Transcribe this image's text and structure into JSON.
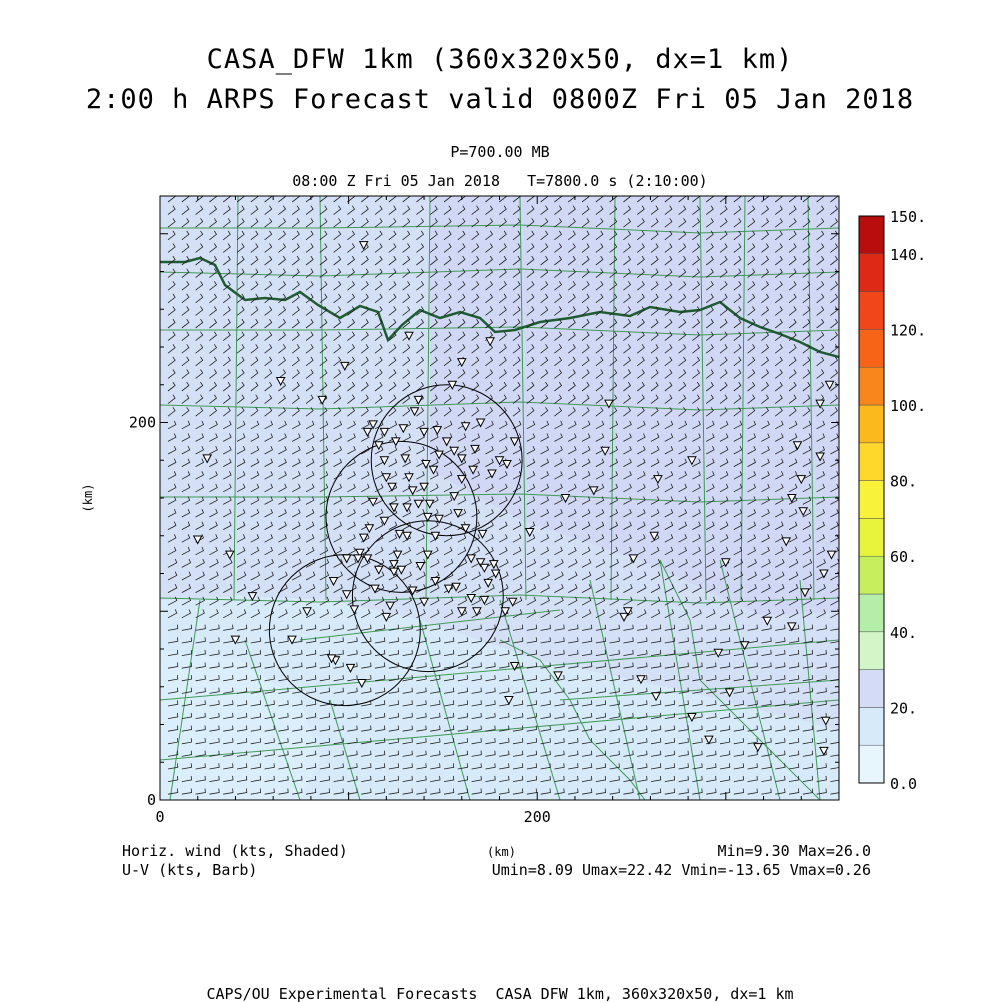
{
  "header": {
    "title_line1": "CASA_DFW 1km (360x320x50, dx=1 km)",
    "title_line2": "2:00 h ARPS Forecast valid 0800Z Fri 05 Jan 2018",
    "level": "P=700.00 MB",
    "time_line": "08:00 Z Fri 05 Jan 2018   T=7800.0 s (2:10:00)"
  },
  "footer": {
    "field_label": "Horiz. wind (kts, Shaded)",
    "vector_label": "U-V (kts, Barb)",
    "minmax": "Min=9.30 Max=26.0",
    "uv_stats": "Umin=8.09 Umax=22.42 Vmin=-13.65 Vmax=0.26",
    "credit": "CAPS/OU Experimental Forecasts  CASA DFW 1km, 360x320x50, dx=1 km"
  },
  "chart_data": {
    "type": "heatmap",
    "variable": "Horiz. wind (kts, Shaded)",
    "xlabel": "(km)",
    "ylabel": "(km)",
    "xlim": [
      0,
      360
    ],
    "ylim": [
      0,
      320
    ],
    "x_ticks": [
      {
        "value": 0,
        "label": "0"
      },
      {
        "value": 200,
        "label": "200"
      }
    ],
    "y_ticks": [
      {
        "value": 0,
        "label": "0"
      },
      {
        "value": 200,
        "label": "200"
      }
    ],
    "colorbar": {
      "range": [
        0,
        150
      ],
      "labels": [
        {
          "value": 0,
          "label": "0.0"
        },
        {
          "value": 20,
          "label": "20."
        },
        {
          "value": 40,
          "label": "40."
        },
        {
          "value": 60,
          "label": "60."
        },
        {
          "value": 80,
          "label": "80."
        },
        {
          "value": 100,
          "label": "100."
        },
        {
          "value": 120,
          "label": "120."
        },
        {
          "value": 140,
          "label": "140."
        },
        {
          "value": 150,
          "label": "150."
        }
      ],
      "bins": [
        {
          "from": 0,
          "to": 10,
          "color": "#e6f6fc"
        },
        {
          "from": 10,
          "to": 20,
          "color": "#d6eafa"
        },
        {
          "from": 20,
          "to": 30,
          "color": "#d3dbf5"
        },
        {
          "from": 30,
          "to": 40,
          "color": "#d2f6c8"
        },
        {
          "from": 40,
          "to": 50,
          "color": "#b5eea8"
        },
        {
          "from": 50,
          "to": 60,
          "color": "#c7ee5c"
        },
        {
          "from": 60,
          "to": 70,
          "color": "#e8f43c"
        },
        {
          "from": 70,
          "to": 80,
          "color": "#f8f23a"
        },
        {
          "from": 80,
          "to": 90,
          "color": "#fed82a"
        },
        {
          "from": 90,
          "to": 100,
          "color": "#fcb91e"
        },
        {
          "from": 100,
          "to": 110,
          "color": "#f8861c"
        },
        {
          "from": 110,
          "to": 120,
          "color": "#f76418"
        },
        {
          "from": 120,
          "to": 130,
          "color": "#f1461a"
        },
        {
          "from": 130,
          "to": 140,
          "color": "#de2a14"
        },
        {
          "from": 140,
          "to": 150,
          "color": "#b70d0d"
        }
      ]
    },
    "field_regions": [
      {
        "name": "nw-high",
        "value": 22,
        "color": "#d4e0f6"
      },
      {
        "name": "ne-high",
        "value": 24,
        "color": "#d0d8f5"
      },
      {
        "name": "south-low",
        "value": 14,
        "color": "#d6eaf9"
      },
      {
        "name": "southwest-low",
        "value": 11,
        "color": "#dbeefb"
      }
    ],
    "radar_range_rings": [
      {
        "cx": 152,
        "cy": 180,
        "r": 40
      },
      {
        "cx": 128,
        "cy": 150,
        "r": 40
      },
      {
        "cx": 142,
        "cy": 108,
        "r": 40
      },
      {
        "cx": 98,
        "cy": 90,
        "r": 40
      }
    ],
    "stations": [
      [
        158,
        152
      ],
      [
        162,
        144
      ],
      [
        165,
        128
      ],
      [
        170,
        126
      ],
      [
        177,
        125
      ],
      [
        174,
        115
      ],
      [
        178,
        120
      ],
      [
        171,
        141
      ],
      [
        165,
        107
      ],
      [
        172,
        106
      ],
      [
        160,
        100
      ],
      [
        168,
        100
      ],
      [
        183,
        100
      ],
      [
        187,
        105
      ],
      [
        162,
        198
      ],
      [
        170,
        200
      ],
      [
        180,
        180
      ],
      [
        167,
        186
      ],
      [
        160,
        170
      ],
      [
        145,
        175
      ],
      [
        140,
        166
      ],
      [
        131,
        155
      ],
      [
        124,
        155
      ],
      [
        119,
        148
      ],
      [
        113,
        158
      ],
      [
        111,
        144
      ],
      [
        108,
        139
      ],
      [
        106,
        131
      ],
      [
        105,
        128
      ],
      [
        110,
        128
      ],
      [
        124,
        125
      ],
      [
        128,
        122
      ],
      [
        116,
        122
      ],
      [
        114,
        112
      ],
      [
        99,
        128
      ],
      [
        92,
        116
      ],
      [
        99,
        109
      ],
      [
        103,
        101
      ],
      [
        122,
        103
      ],
      [
        140,
        105
      ],
      [
        134,
        111
      ],
      [
        153,
        112
      ],
      [
        138,
        124
      ],
      [
        142,
        130
      ],
      [
        146,
        140
      ],
      [
        142,
        150
      ],
      [
        148,
        149
      ],
      [
        156,
        161
      ],
      [
        166,
        175
      ],
      [
        176,
        173
      ],
      [
        184,
        178
      ],
      [
        188,
        190
      ],
      [
        147,
        196
      ],
      [
        140,
        195
      ],
      [
        152,
        190
      ],
      [
        156,
        185
      ],
      [
        160,
        181
      ],
      [
        148,
        183
      ],
      [
        141,
        178
      ],
      [
        130,
        181
      ],
      [
        125,
        190
      ],
      [
        116,
        188
      ],
      [
        120,
        171
      ],
      [
        123,
        166
      ],
      [
        134,
        164
      ],
      [
        132,
        171
      ],
      [
        119,
        195
      ],
      [
        110,
        195
      ],
      [
        119,
        180
      ],
      [
        113,
        199
      ],
      [
        129,
        197
      ],
      [
        135,
        206
      ],
      [
        131,
        140
      ],
      [
        127,
        141
      ],
      [
        137,
        157
      ],
      [
        143,
        157
      ],
      [
        120,
        97
      ],
      [
        93,
        74
      ],
      [
        91,
        75
      ],
      [
        70,
        85
      ],
      [
        78,
        100
      ],
      [
        49,
        108
      ],
      [
        25,
        181
      ],
      [
        40,
        85
      ],
      [
        20,
        138
      ],
      [
        37,
        130
      ],
      [
        64,
        222
      ],
      [
        86,
        212
      ],
      [
        98,
        230
      ],
      [
        108,
        294
      ],
      [
        132,
        246
      ],
      [
        137,
        212
      ],
      [
        155,
        220
      ],
      [
        175,
        243
      ],
      [
        160,
        232
      ],
      [
        124,
        121
      ],
      [
        126,
        130
      ],
      [
        107,
        62
      ],
      [
        101,
        70
      ],
      [
        146,
        116
      ],
      [
        157,
        113
      ],
      [
        185,
        53
      ],
      [
        172,
        123
      ],
      [
        188,
        71
      ],
      [
        196,
        142
      ],
      [
        211,
        66
      ],
      [
        215,
        160
      ],
      [
        230,
        164
      ],
      [
        236,
        185
      ],
      [
        238,
        210
      ],
      [
        251,
        128
      ],
      [
        264,
        170
      ],
      [
        262,
        140
      ],
      [
        248,
        100
      ],
      [
        282,
        180
      ],
      [
        300,
        126
      ],
      [
        310,
        82
      ],
      [
        322,
        95
      ],
      [
        335,
        92
      ],
      [
        342,
        110
      ],
      [
        352,
        120
      ],
      [
        356,
        130
      ],
      [
        355,
        220
      ],
      [
        350,
        182
      ],
      [
        332,
        137
      ],
      [
        335,
        160
      ],
      [
        340,
        170
      ],
      [
        338,
        188
      ],
      [
        350,
        210
      ],
      [
        302,
        57
      ],
      [
        296,
        78
      ],
      [
        246,
        97
      ],
      [
        255,
        64
      ],
      [
        263,
        55
      ],
      [
        282,
        44
      ],
      [
        291,
        32
      ],
      [
        317,
        28
      ],
      [
        352,
        26
      ],
      [
        353,
        42
      ],
      [
        341,
        153
      ]
    ]
  }
}
